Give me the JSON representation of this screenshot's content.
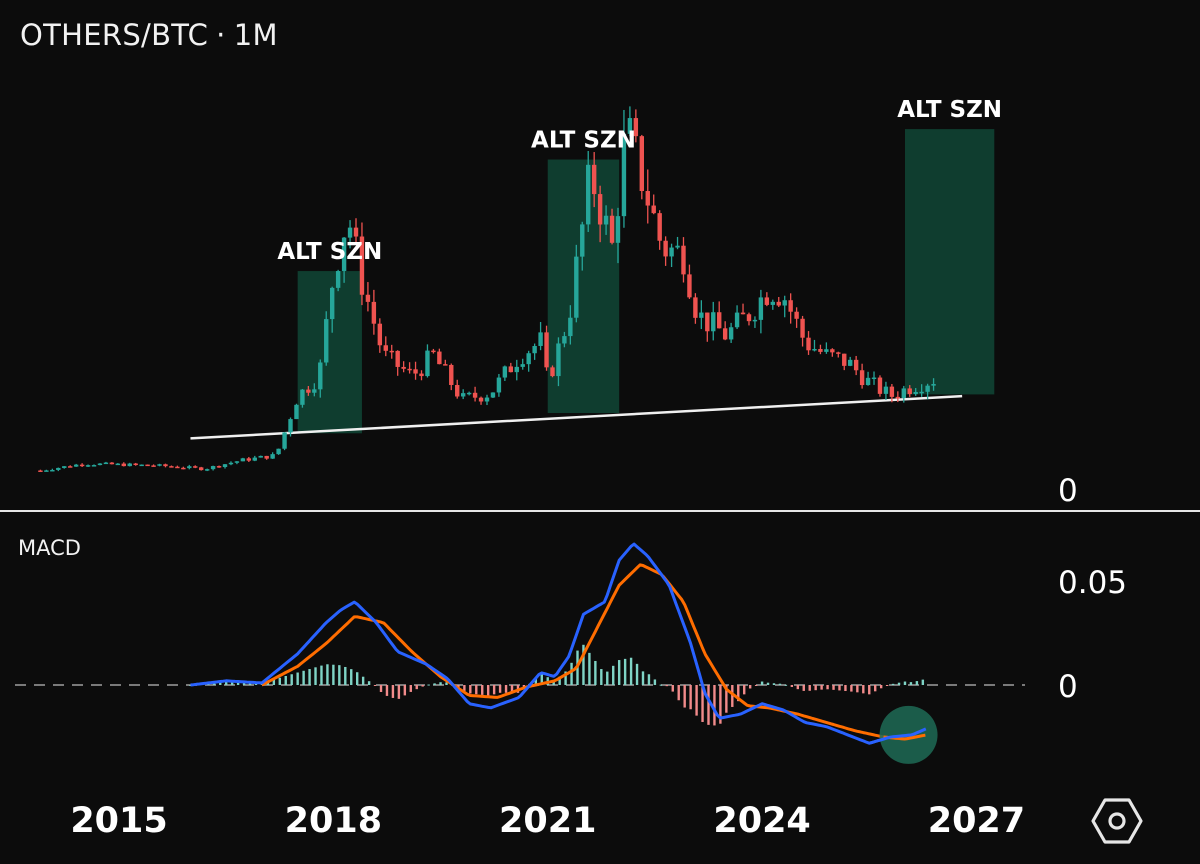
{
  "header": {
    "pair": "OTHERS/BTC",
    "separator": "·",
    "interval": "1M"
  },
  "colors": {
    "up": "#26a69a",
    "down": "#ef5350",
    "macd_line": "#2962ff",
    "signal_line": "#ff6d00",
    "zone_fill": "#0f3d2f",
    "hist_pos": "#7fd4c6",
    "hist_neg": "#f28b8b",
    "highlight": "#1f6b56"
  },
  "chart_data": [
    {
      "type": "candlestick",
      "title": "OTHERS/BTC · 1M",
      "x_range": [
        2013.6,
        2028.6
      ],
      "ylim": [
        0,
        100
      ],
      "x_ticks": [
        2015,
        2018,
        2021,
        2024,
        2027
      ],
      "y_ticks": [
        {
          "value": 0,
          "label": "0"
        }
      ],
      "keypoints": [
        [
          2013.9,
          4
        ],
        [
          2014.5,
          6
        ],
        [
          2015.5,
          5.5
        ],
        [
          2016.2,
          4.5
        ],
        [
          2016.7,
          7
        ],
        [
          2017.2,
          8.5
        ],
        [
          2017.5,
          26
        ],
        [
          2017.8,
          32
        ],
        [
          2018.0,
          62
        ],
        [
          2018.2,
          80
        ],
        [
          2018.4,
          60
        ],
        [
          2018.7,
          38
        ],
        [
          2019.1,
          32
        ],
        [
          2019.4,
          38
        ],
        [
          2019.8,
          25
        ],
        [
          2020.2,
          27
        ],
        [
          2020.6,
          38
        ],
        [
          2020.9,
          42
        ],
        [
          2021.0,
          30
        ],
        [
          2021.3,
          50
        ],
        [
          2021.6,
          92
        ],
        [
          2021.9,
          70
        ],
        [
          2022.1,
          105
        ],
        [
          2022.3,
          92
        ],
        [
          2022.6,
          70
        ],
        [
          2022.9,
          68
        ],
        [
          2023.1,
          50
        ],
        [
          2023.5,
          44
        ],
        [
          2023.8,
          50
        ],
        [
          2024.1,
          58
        ],
        [
          2024.3,
          56
        ],
        [
          2024.6,
          42
        ],
        [
          2024.9,
          38
        ],
        [
          2025.2,
          36
        ],
        [
          2025.5,
          30
        ],
        [
          2025.8,
          26
        ],
        [
          2026.1,
          29
        ],
        [
          2026.4,
          31
        ]
      ],
      "trendline": {
        "from": [
          2016.0,
          13.5
        ],
        "to": [
          2026.8,
          26
        ]
      },
      "zones": [
        {
          "label": "ALT SZN",
          "x_start": 2017.5,
          "x_end": 2018.4,
          "y_low": 15,
          "y_high": 63
        },
        {
          "label": "ALT SZN",
          "x_start": 2021.0,
          "x_end": 2022.0,
          "y_low": 21,
          "y_high": 96
        },
        {
          "label": "ALT SZN",
          "x_start": 2026.0,
          "x_end": 2027.25,
          "y_low": 26.5,
          "y_high": 105
        }
      ]
    },
    {
      "type": "line",
      "title": "MACD",
      "x_range": [
        2013.6,
        2028.6
      ],
      "ylim": [
        -0.025,
        0.075
      ],
      "y_ticks": [
        {
          "value": 0.05,
          "label": "0.05"
        },
        {
          "value": 0,
          "label": "0"
        }
      ],
      "zero_line": 0,
      "series": [
        {
          "name": "MACD",
          "points": [
            [
              2016.0,
              0
            ],
            [
              2016.5,
              0.002
            ],
            [
              2017.0,
              0.001
            ],
            [
              2017.5,
              0.015
            ],
            [
              2017.9,
              0.03
            ],
            [
              2018.1,
              0.036
            ],
            [
              2018.3,
              0.04
            ],
            [
              2018.6,
              0.03
            ],
            [
              2018.9,
              0.016
            ],
            [
              2019.3,
              0.01
            ],
            [
              2019.6,
              0.003
            ],
            [
              2019.9,
              -0.009
            ],
            [
              2020.2,
              -0.011
            ],
            [
              2020.6,
              -0.006
            ],
            [
              2020.9,
              0.006
            ],
            [
              2021.1,
              0.004
            ],
            [
              2021.3,
              0.014
            ],
            [
              2021.5,
              0.034
            ],
            [
              2021.8,
              0.04
            ],
            [
              2022.0,
              0.06
            ],
            [
              2022.2,
              0.068
            ],
            [
              2022.4,
              0.062
            ],
            [
              2022.7,
              0.048
            ],
            [
              2023.0,
              0.02
            ],
            [
              2023.2,
              -0.004
            ],
            [
              2023.4,
              -0.016
            ],
            [
              2023.7,
              -0.014
            ],
            [
              2024.0,
              -0.009
            ],
            [
              2024.3,
              -0.012
            ],
            [
              2024.6,
              -0.018
            ],
            [
              2024.9,
              -0.02
            ],
            [
              2025.2,
              -0.024
            ],
            [
              2025.5,
              -0.028
            ],
            [
              2025.8,
              -0.025
            ],
            [
              2026.1,
              -0.024
            ],
            [
              2026.3,
              -0.021
            ]
          ]
        },
        {
          "name": "Signal",
          "points": [
            [
              2017.0,
              0
            ],
            [
              2017.5,
              0.009
            ],
            [
              2017.9,
              0.02
            ],
            [
              2018.3,
              0.033
            ],
            [
              2018.7,
              0.03
            ],
            [
              2019.1,
              0.016
            ],
            [
              2019.5,
              0.004
            ],
            [
              2019.9,
              -0.005
            ],
            [
              2020.3,
              -0.006
            ],
            [
              2020.7,
              -0.001
            ],
            [
              2021.1,
              0.002
            ],
            [
              2021.4,
              0.008
            ],
            [
              2021.7,
              0.028
            ],
            [
              2022.0,
              0.048
            ],
            [
              2022.3,
              0.058
            ],
            [
              2022.6,
              0.053
            ],
            [
              2022.9,
              0.04
            ],
            [
              2023.2,
              0.015
            ],
            [
              2023.5,
              -0.002
            ],
            [
              2023.8,
              -0.01
            ],
            [
              2024.1,
              -0.011
            ],
            [
              2024.5,
              -0.014
            ],
            [
              2024.9,
              -0.018
            ],
            [
              2025.3,
              -0.022
            ],
            [
              2025.7,
              -0.025
            ],
            [
              2026.0,
              -0.026
            ],
            [
              2026.3,
              -0.024
            ]
          ]
        }
      ],
      "highlight": {
        "x": 2026.05,
        "y": -0.024
      }
    }
  ]
}
